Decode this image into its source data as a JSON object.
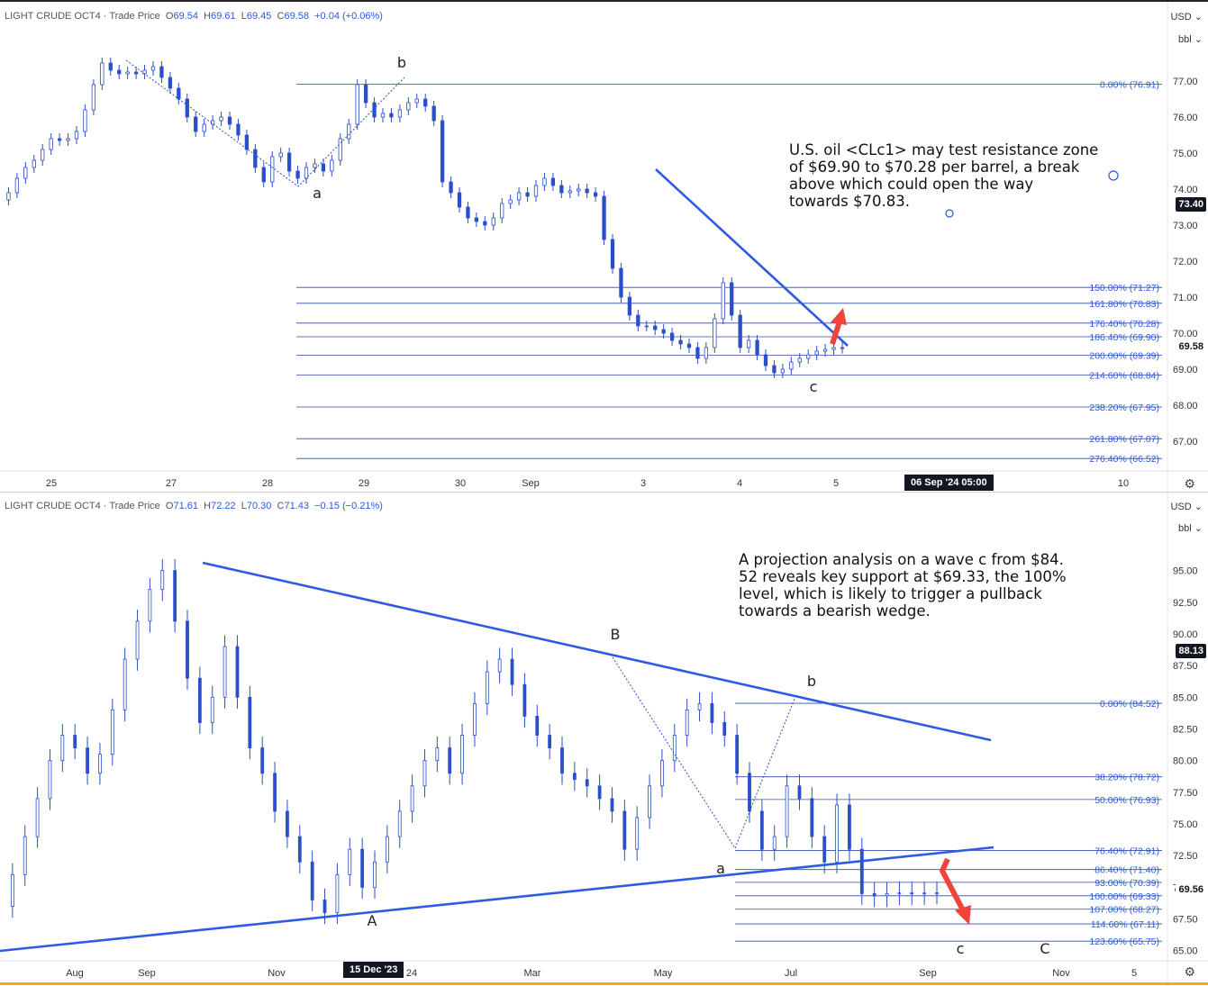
{
  "panels": [
    {
      "header": {
        "name": "LIGHT CRUDE OCT4 · Trade Price",
        "o_label": "O",
        "o": "69.54",
        "h_label": "H",
        "h": "69.61",
        "l_label": "L",
        "l": "69.45",
        "c_label": "C",
        "c": "69.58",
        "change": "+0.04 (+0.06%)"
      },
      "currency": "USD",
      "unit": "bbl",
      "note": "U.S. oil <CLc1> may test resistance zone\nof $69.90 to $70.28 per barrel, a break\nabove which could open the way\ntowards $70.83.",
      "price_tags": [
        {
          "label": "73.40",
          "bg": "#131722",
          "fg": "#ffffff"
        },
        {
          "label": "69.58",
          "bg": "#ffffff",
          "fg": "#131722"
        }
      ],
      "crosshair_label": "06 Sep '24   05:00",
      "chart_data": {
        "type": "line",
        "title": "",
        "ylim": [
          66.2,
          78.2
        ],
        "y_ticks": [
          "77.00",
          "76.00",
          "75.00",
          "74.00",
          "73.00",
          "72.00",
          "71.00",
          "70.00",
          "69.00",
          "68.00",
          "67.00"
        ],
        "x_ticks": [
          "25",
          "27",
          "28",
          "29",
          "30",
          "Sep",
          "3",
          "4",
          "5",
          "10"
        ],
        "fib_levels": [
          {
            "label": "0.00% (76.91)",
            "value": 76.91
          },
          {
            "label": "150.00% (71.27)",
            "value": 71.27
          },
          {
            "label": "161.80% (70.83)",
            "value": 70.83
          },
          {
            "label": "176.40% (70.28)",
            "value": 70.28
          },
          {
            "label": "186.40% (69.90)",
            "value": 69.9
          },
          {
            "label": "200.00% (69.39)",
            "value": 69.39
          },
          {
            "label": "214.60% (68.84)",
            "value": 68.84
          },
          {
            "label": "238.20% (67.95)",
            "value": 67.95
          },
          {
            "label": "261.80% (67.07)",
            "value": 67.07
          },
          {
            "label": "276.40% (66.52)",
            "value": 66.52
          }
        ],
        "wave_labels": [
          "a",
          "b",
          "c"
        ],
        "series": [
          {
            "x": [
              0,
              2,
              4,
              6,
              8,
              10,
              12,
              14,
              16,
              18,
              20,
              22,
              24,
              26,
              28,
              30,
              32,
              34,
              36,
              38,
              40,
              42,
              44,
              46,
              48,
              50,
              52,
              54,
              56,
              58,
              60,
              62,
              64,
              66,
              68,
              70,
              72,
              74,
              76,
              78,
              80,
              82,
              84,
              86,
              88,
              90,
              92,
              94,
              96,
              98,
              100,
              102,
              104,
              106,
              108,
              110,
              112,
              114,
              116,
              118,
              120,
              122,
              124,
              126,
              128,
              130,
              132,
              134,
              136,
              138,
              140,
              142,
              144,
              146,
              148,
              150,
              152,
              154,
              156,
              158,
              160,
              162,
              164,
              166,
              168,
              170,
              172,
              174,
              176,
              178,
              180,
              182,
              184,
              186,
              188,
              190,
              192,
              194,
              196,
              198
            ],
            "values": [
              73.7,
              73.9,
              74.3,
              74.6,
              74.8,
              75.1,
              75.4,
              75.35,
              75.4,
              75.6,
              76.2,
              76.9,
              77.5,
              77.3,
              77.2,
              77.25,
              77.2,
              77.3,
              77.4,
              77.1,
              76.8,
              76.5,
              76.0,
              75.6,
              75.8,
              75.9,
              76.0,
              75.8,
              75.5,
              75.1,
              74.6,
              74.2,
              74.9,
              75.0,
              74.5,
              74.3,
              74.6,
              74.7,
              74.5,
              74.8,
              75.4,
              75.8,
              76.9,
              76.4,
              76.0,
              76.1,
              76.0,
              76.2,
              76.4,
              76.5,
              76.3,
              75.9,
              74.2,
              73.9,
              73.5,
              73.2,
              73.1,
              73.0,
              73.2,
              73.6,
              73.7,
              73.9,
              73.8,
              74.1,
              74.3,
              74.1,
              73.9,
              73.95,
              74.0,
              73.9,
              73.8,
              72.6,
              71.8,
              71.0,
              70.5,
              70.2,
              70.2,
              70.1,
              70.0,
              69.8,
              69.7,
              69.6,
              69.3,
              69.6,
              70.4,
              71.4,
              70.5,
              69.6,
              69.8,
              69.4,
              69.1,
              68.9,
              69.0,
              69.2,
              69.3,
              69.4,
              69.5,
              69.55,
              69.6,
              69.58
            ]
          }
        ]
      }
    },
    {
      "header": {
        "name": "LIGHT CRUDE OCT4 · Trade Price",
        "o_label": "O",
        "o": "71.61",
        "h_label": "H",
        "h": "72.22",
        "l_label": "L",
        "l": "70.30",
        "c_label": "C",
        "c": "71.43",
        "change": "−0.15 (−0.21%)"
      },
      "currency": "USD",
      "unit": "bbl",
      "note": "A projection analysis on a wave c from $84.\n52 reveals key support at $69.33, the 100%\nlevel, which is likely to trigger a pullback\ntowards a bearish wedge.",
      "price_tags": [
        {
          "label": "88.13",
          "bg": "#131722",
          "fg": "#ffffff"
        },
        {
          "label": "69.56",
          "bg": "#ffffff",
          "fg": "#131722"
        }
      ],
      "crosshair_label": "15 Dec '23",
      "chart_data": {
        "type": "line",
        "title": "",
        "ylim": [
          64.2,
          97.6
        ],
        "y_ticks": [
          "95.00",
          "92.50",
          "90.00",
          "87.50",
          "85.00",
          "82.50",
          "80.00",
          "77.50",
          "75.00",
          "72.50",
          "70.00",
          "67.50",
          "65.00"
        ],
        "x_ticks": [
          "Aug",
          "Sep",
          "Nov",
          "24",
          "Mar",
          "May",
          "Jul",
          "Sep",
          "Nov",
          "5"
        ],
        "fib_levels": [
          {
            "label": "0.00% (84.52)",
            "value": 84.52
          },
          {
            "label": "38.20% (78.72)",
            "value": 78.72
          },
          {
            "label": "50.00% (76.93)",
            "value": 76.93
          },
          {
            "label": "76.40% (72.91)",
            "value": 72.91
          },
          {
            "label": "86.40% (71.40)",
            "value": 71.4
          },
          {
            "label": "93.00% (70.39)",
            "value": 70.39
          },
          {
            "label": "100.00% (69.33)",
            "value": 69.33
          },
          {
            "label": "107.00% (68.27)",
            "value": 68.27
          },
          {
            "label": "114.60% (67.11)",
            "value": 67.11
          },
          {
            "label": "123.60% (65.75)",
            "value": 65.75
          }
        ],
        "wave_labels": [
          "A",
          "B",
          "a",
          "b",
          "c",
          "C"
        ],
        "series": [
          {
            "x": [
              0,
              2,
              4,
              6,
              8,
              10,
              12,
              14,
              16,
              18,
              20,
              22,
              24,
              26,
              28,
              30,
              32,
              34,
              36,
              38,
              40,
              42,
              44,
              46,
              48,
              50,
              52,
              54,
              56,
              58,
              60,
              62,
              64,
              66,
              68,
              70,
              72,
              74,
              76,
              78,
              80,
              82,
              84,
              86,
              88,
              90,
              92,
              94,
              96,
              98,
              100,
              102,
              104,
              106,
              108,
              110,
              112,
              114,
              116,
              118,
              120,
              122,
              124,
              126,
              128,
              130,
              132,
              134,
              136,
              138,
              140,
              142,
              144,
              146,
              148,
              150
            ],
            "values": [
              68.5,
              71.0,
              74.0,
              77.0,
              80.0,
              82.0,
              81.0,
              79.0,
              80.5,
              84.0,
              88.0,
              91.0,
              93.5,
              95.0,
              91.0,
              86.5,
              83.0,
              85.0,
              89.0,
              85.0,
              81.0,
              79.0,
              76.0,
              74.0,
              72.0,
              69.0,
              68.0,
              71.0,
              73.0,
              70.0,
              72.0,
              74.0,
              76.0,
              78.0,
              80.0,
              81.0,
              79.0,
              82.0,
              84.5,
              87.0,
              88.0,
              86.0,
              83.5,
              82.0,
              81.0,
              79.0,
              78.5,
              78.0,
              77.0,
              76.0,
              73.0,
              75.5,
              78.0,
              80.0,
              82.0,
              84.0,
              84.5,
              83.0,
              82.0,
              79.0,
              76.0,
              73.0,
              74.0,
              78.0,
              77.0,
              74.0,
              72.0,
              76.5,
              73.0,
              69.5,
              69.33,
              69.5,
              69.56,
              69.5,
              69.55,
              69.56
            ]
          }
        ]
      }
    }
  ]
}
